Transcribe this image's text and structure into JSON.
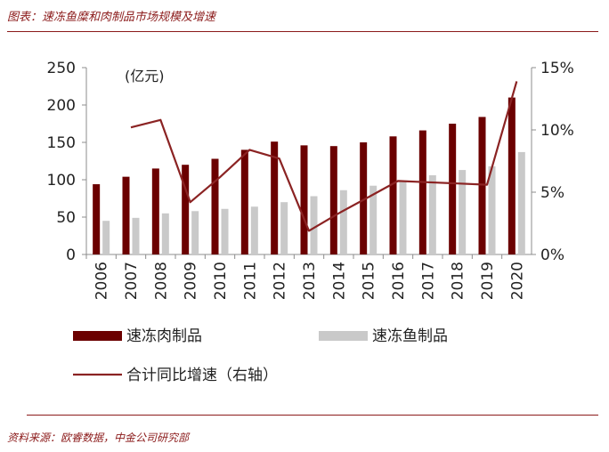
{
  "header": {
    "caption": "图表：速冻鱼糜和肉制品市场规模及增速"
  },
  "footer": {
    "source": "资料来源：欧睿数据，中金公司研究部"
  },
  "colors": {
    "meat": "#6b0000",
    "fish": "#c9c9c9",
    "line": "#8b2323",
    "accent": "#8b1a1a"
  },
  "chart_data": {
    "type": "bar",
    "unit_label": "(亿元)",
    "categories": [
      "2006",
      "2007",
      "2008",
      "2009",
      "2010",
      "2011",
      "2012",
      "2013",
      "2014",
      "2015",
      "2016",
      "2017",
      "2018",
      "2019",
      "2020"
    ],
    "ylim": [
      0,
      250
    ],
    "yticks": [
      "0",
      "50",
      "100",
      "150",
      "200",
      "250"
    ],
    "y2lim": [
      0,
      15
    ],
    "y2ticks": [
      "0%",
      "5%",
      "10%",
      "15%"
    ],
    "grid": false,
    "series": [
      {
        "name": "速冻肉制品",
        "type": "bar",
        "axis": "left",
        "values": [
          94,
          104,
          115,
          120,
          128,
          140,
          151,
          146,
          145,
          150,
          158,
          166,
          175,
          184,
          210
        ]
      },
      {
        "name": "速冻鱼制品",
        "type": "bar",
        "axis": "left",
        "values": [
          45,
          49,
          55,
          58,
          61,
          64,
          70,
          78,
          86,
          92,
          97,
          106,
          113,
          118,
          137
        ]
      },
      {
        "name": "合计同比增速（右轴）",
        "type": "line",
        "axis": "right",
        "values": [
          null,
          10.2,
          10.8,
          4.2,
          6.2,
          8.4,
          7.7,
          1.9,
          3.3,
          4.6,
          5.9,
          5.8,
          5.7,
          5.6,
          13.9
        ]
      }
    ],
    "legend": {
      "placement": "bottom"
    }
  }
}
